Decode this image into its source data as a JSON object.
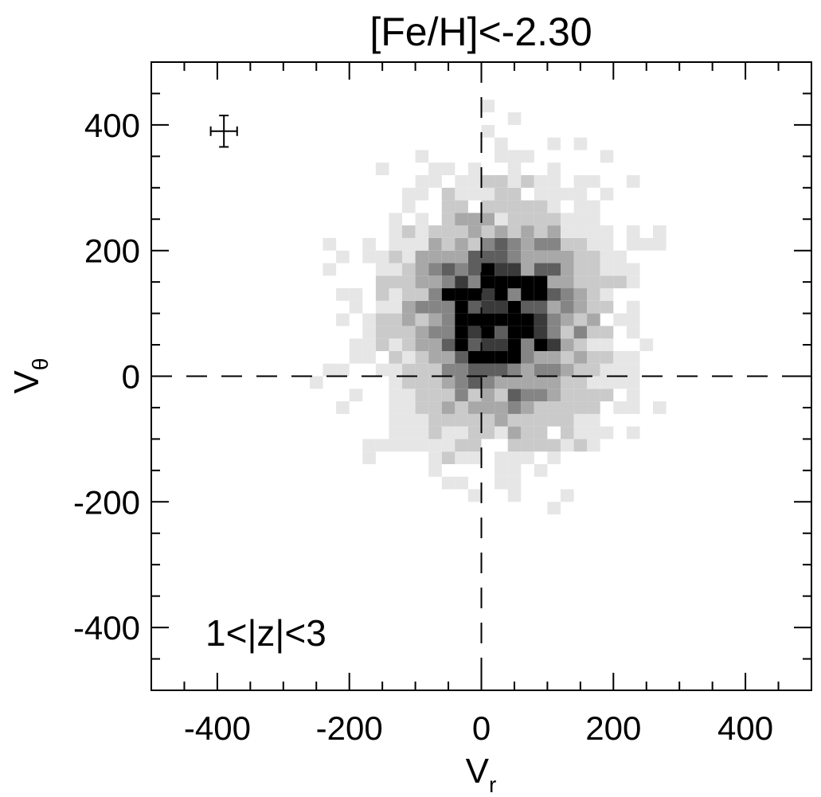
{
  "chart_data": {
    "type": "heatmap",
    "title": "[Fe/H]<-2.30",
    "xlabel": {
      "main": "V",
      "sub": "r"
    },
    "ylabel": {
      "main": "V",
      "sub": "θ"
    },
    "annotation": "1<|z|<3",
    "xlim": [
      -500,
      500
    ],
    "ylim": [
      -500,
      500
    ],
    "xticks": [
      -400,
      -200,
      0,
      200,
      400
    ],
    "yticks": [
      -400,
      -200,
      0,
      200,
      400
    ],
    "xtick_labels": [
      "-400",
      "-200",
      "0",
      "200",
      "400"
    ],
    "ytick_labels": [
      "-400",
      "-200",
      "0",
      "200",
      "400"
    ],
    "minor_tick_step": 50,
    "bin_width": 20,
    "grid": false,
    "dashed_zero_lines": true,
    "error_bar": {
      "x": -390,
      "y": 390,
      "xerr": 20,
      "yerr": 25
    },
    "colormap": "greyscale, darker = higher density",
    "density_levels": [
      "#e6e6e6",
      "#cacaca",
      "#a8a8a8",
      "#858585",
      "#5e5e5e",
      "#3a3a3a",
      "#000000"
    ],
    "density_model": {
      "center": [
        25,
        85
      ],
      "sigma_x": 95,
      "sigma_y": 115,
      "core_center": [
        25,
        110
      ],
      "core_sigma": 55
    }
  }
}
